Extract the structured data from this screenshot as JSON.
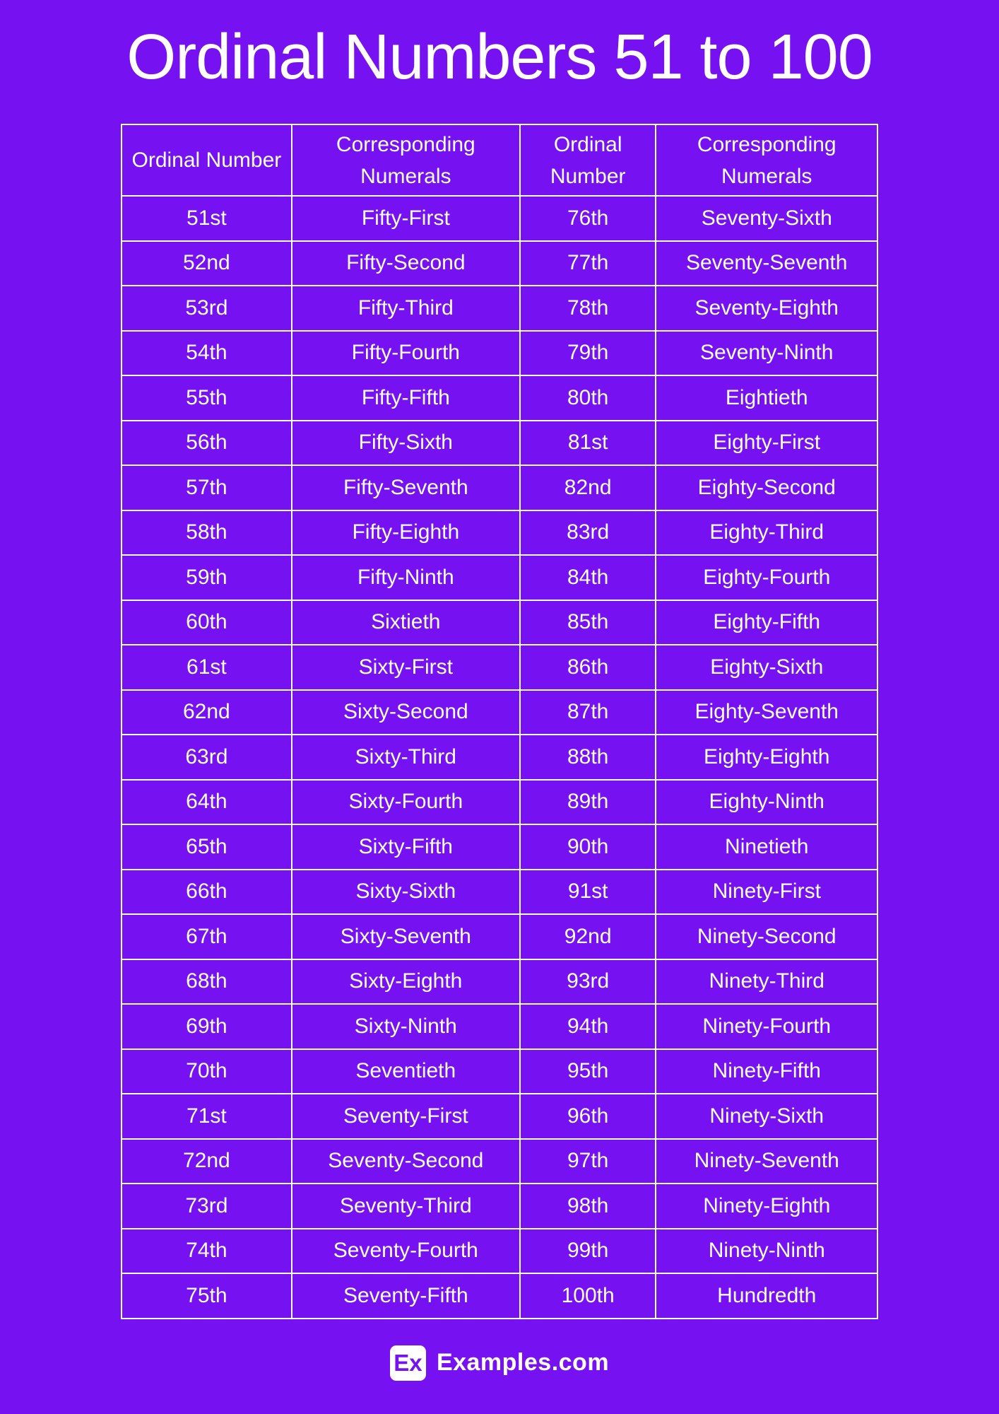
{
  "page": {
    "title": "Ordinal Numbers 51 to 100",
    "background_color": "#7611F2",
    "accent_color": "#7611F2",
    "text_color": "#FFFFFF",
    "border_color": "#FFFFFF"
  },
  "table": {
    "headers": [
      "Ordinal Number",
      "Corresponding Numerals",
      "Ordinal Number",
      "Corresponding Numerals"
    ],
    "rows": [
      [
        "51st",
        "Fifty-First",
        "76th",
        "Seventy-Sixth"
      ],
      [
        "52nd",
        "Fifty-Second",
        "77th",
        "Seventy-Seventh"
      ],
      [
        "53rd",
        "Fifty-Third",
        "78th",
        "Seventy-Eighth"
      ],
      [
        "54th",
        "Fifty-Fourth",
        "79th",
        "Seventy-Ninth"
      ],
      [
        "55th",
        "Fifty-Fifth",
        "80th",
        "Eightieth"
      ],
      [
        "56th",
        "Fifty-Sixth",
        "81st",
        "Eighty-First"
      ],
      [
        "57th",
        "Fifty-Seventh",
        "82nd",
        "Eighty-Second"
      ],
      [
        "58th",
        "Fifty-Eighth",
        "83rd",
        "Eighty-Third"
      ],
      [
        "59th",
        "Fifty-Ninth",
        "84th",
        "Eighty-Fourth"
      ],
      [
        "60th",
        "Sixtieth",
        "85th",
        "Eighty-Fifth"
      ],
      [
        "61st",
        "Sixty-First",
        "86th",
        "Eighty-Sixth"
      ],
      [
        "62nd",
        "Sixty-Second",
        "87th",
        "Eighty-Seventh"
      ],
      [
        "63rd",
        "Sixty-Third",
        "88th",
        "Eighty-Eighth"
      ],
      [
        "64th",
        "Sixty-Fourth",
        "89th",
        "Eighty-Ninth"
      ],
      [
        "65th",
        "Sixty-Fifth",
        "90th",
        "Ninetieth"
      ],
      [
        "66th",
        "Sixty-Sixth",
        "91st",
        "Ninety-First"
      ],
      [
        "67th",
        "Sixty-Seventh",
        "92nd",
        "Ninety-Second"
      ],
      [
        "68th",
        "Sixty-Eighth",
        "93rd",
        "Ninety-Third"
      ],
      [
        "69th",
        "Sixty-Ninth",
        "94th",
        "Ninety-Fourth"
      ],
      [
        "70th",
        "Seventieth",
        "95th",
        "Ninety-Fifth"
      ],
      [
        "71st",
        "Seventy-First",
        "96th",
        "Ninety-Sixth"
      ],
      [
        "72nd",
        "Seventy-Second",
        "97th",
        "Ninety-Seventh"
      ],
      [
        "73rd",
        "Seventy-Third",
        "98th",
        "Ninety-Eighth"
      ],
      [
        "74th",
        "Seventy-Fourth",
        "99th",
        "Ninety-Ninth"
      ],
      [
        "75th",
        "Seventy-Fifth",
        "100th",
        "Hundredth"
      ]
    ]
  },
  "footer": {
    "logo_badge": "Ex",
    "logo_text": "Examples.com"
  }
}
